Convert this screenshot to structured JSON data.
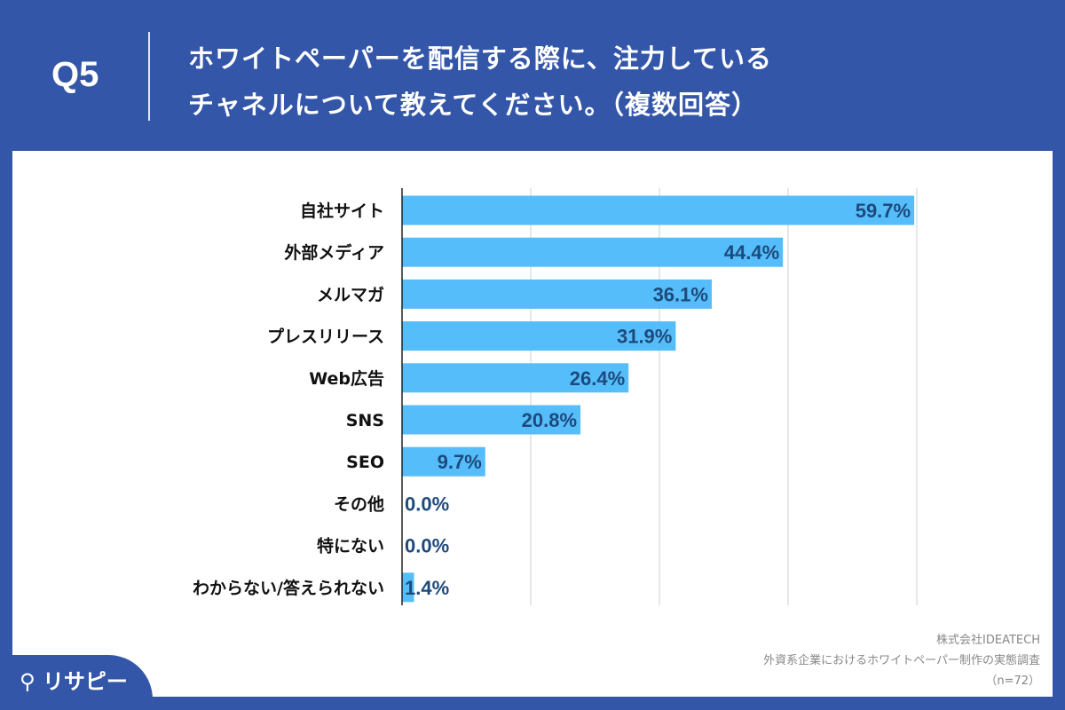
{
  "header": {
    "q": "Q5",
    "title_line1": "ホワイトペーパーを配信する際に、注力している",
    "title_line2": "チャネルについて教えてください。（複数回答）"
  },
  "chart_data": {
    "type": "bar",
    "orientation": "horizontal",
    "categories": [
      "自社サイト",
      "外部メディア",
      "メルマガ",
      "プレスリリース",
      "Web広告",
      "SNS",
      "SEO",
      "その他",
      "特にない",
      "わからない/答えられない"
    ],
    "values": [
      59.7,
      44.4,
      36.1,
      31.9,
      26.4,
      20.8,
      9.7,
      0.0,
      0.0,
      1.4
    ],
    "value_labels": [
      "59.7%",
      "44.4%",
      "36.1%",
      "31.9%",
      "26.4%",
      "20.8%",
      "9.7%",
      "0.0%",
      "0.0%",
      "1.4%"
    ],
    "xlim": [
      0,
      60
    ],
    "grid": true,
    "grid_step": 15,
    "bar_color": "#55bdfa",
    "label_color": "#1d4a7c"
  },
  "source": {
    "company": "株式会社IDEATECH",
    "survey": "外資系企業におけるホワイトペーパー制作の実態調査",
    "n": "（n=72）"
  },
  "logo": "リサピー"
}
